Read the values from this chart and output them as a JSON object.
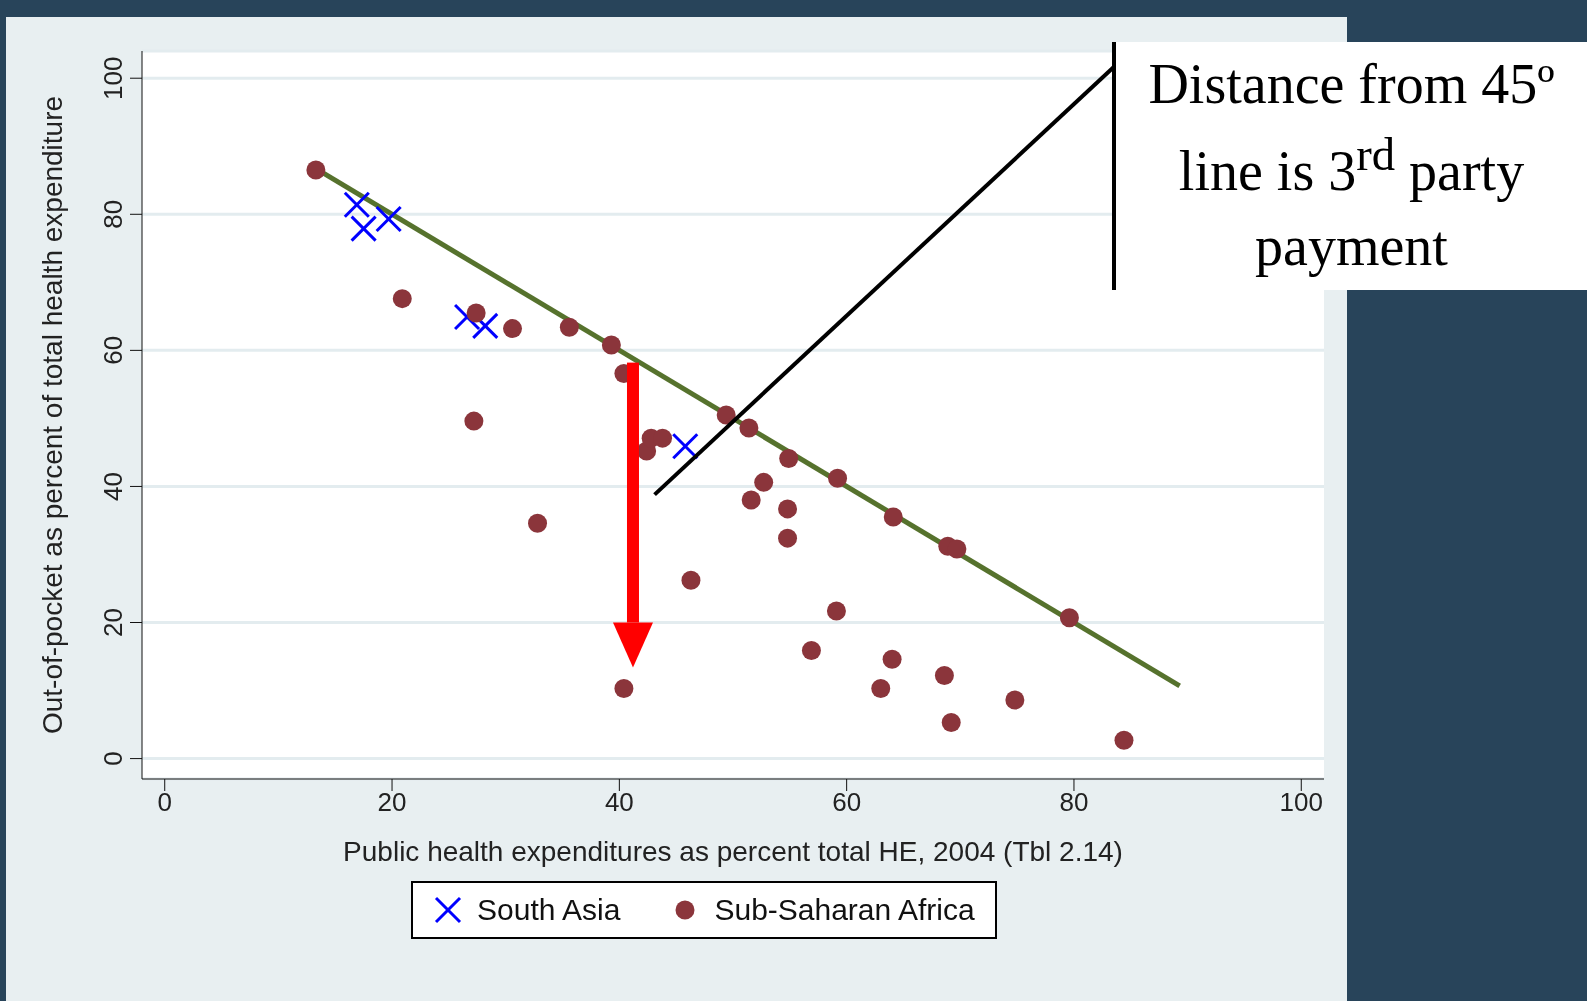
{
  "chart_data": {
    "type": "scatter",
    "xlabel": "Public health expenditures as percent total HE, 2004 (Tbl 2.14)",
    "ylabel": "Out-of-pocket as percent of total health expenditure",
    "annotations": [
      "Distance from 45º line is 3$^{rd}$ party payment"
    ],
    "series": [
      {
        "name": "South Asia",
        "marker": "cross",
        "color": "#0000ff",
        "x": [
          16.9,
          17.5,
          19.7,
          26.6,
          28.2,
          45.8
        ],
        "values": [
          81.4,
          77.9,
          79.3,
          64.9,
          63.6,
          45.9
        ]
      },
      {
        "name": "Sub-Saharan Africa",
        "marker": "circle",
        "color": "#8b353b",
        "x": [
          13.3,
          20.9,
          27.4,
          27.2,
          30.6,
          32.8,
          35.6,
          39.3,
          40.4,
          40.4,
          42.4,
          42.8,
          43.8,
          46.3,
          49.4,
          51.4,
          51.6,
          52.7,
          54.8,
          54.8,
          54.9,
          56.9,
          59.1,
          59.2,
          63.0,
          64.0,
          64.1,
          68.6,
          68.9,
          69.2,
          69.7,
          74.8,
          79.6,
          84.4
        ],
        "values": [
          86.5,
          67.6,
          65.5,
          49.6,
          63.2,
          34.6,
          63.4,
          60.8,
          56.6,
          10.3,
          45.2,
          47.1,
          47.1,
          26.2,
          50.5,
          48.6,
          38.0,
          40.6,
          36.7,
          32.4,
          44.1,
          15.9,
          21.7,
          41.2,
          10.3,
          14.6,
          35.5,
          12.2,
          31.2,
          5.3,
          30.8,
          8.6,
          20.7,
          2.7
        ]
      },
      {
        "type": "line",
        "marker": "none",
        "line_style": "solid",
        "color": "#56722d",
        "x": [
          13.3,
          89.3
        ],
        "values": [
          86.7,
          10.7
        ]
      }
    ],
    "xlim": [
      -2,
      102
    ],
    "ylim": [
      -3,
      104
    ],
    "xticks": [
      0,
      20,
      40,
      60,
      80,
      100
    ],
    "yticks": [
      0,
      20,
      40,
      60,
      80,
      100
    ],
    "grid": "y",
    "legend": "bottom"
  }
}
